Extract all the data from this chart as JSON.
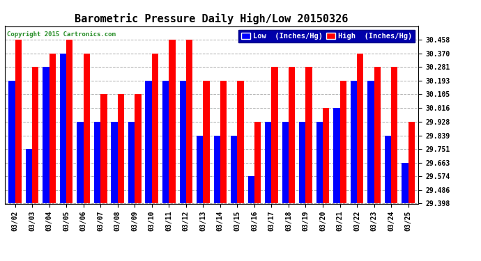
{
  "title": "Barometric Pressure Daily High/Low 20150326",
  "copyright": "Copyright 2015 Cartronics.com",
  "legend_low": "Low  (Inches/Hg)",
  "legend_high": "High  (Inches/Hg)",
  "dates": [
    "03/02",
    "03/03",
    "03/04",
    "03/05",
    "03/06",
    "03/07",
    "03/08",
    "03/09",
    "03/10",
    "03/11",
    "03/12",
    "03/13",
    "03/14",
    "03/15",
    "03/16",
    "03/17",
    "03/18",
    "03/19",
    "03/20",
    "03/21",
    "03/22",
    "03/23",
    "03/24",
    "03/25"
  ],
  "low": [
    30.193,
    29.751,
    30.281,
    30.37,
    29.928,
    29.928,
    29.928,
    29.928,
    30.193,
    30.193,
    30.193,
    29.839,
    29.839,
    29.839,
    29.574,
    29.928,
    29.928,
    29.928,
    29.928,
    30.016,
    30.193,
    30.193,
    29.839,
    29.663
  ],
  "high": [
    30.458,
    30.281,
    30.37,
    30.458,
    30.37,
    30.105,
    30.105,
    30.105,
    30.37,
    30.458,
    30.458,
    30.193,
    30.193,
    30.193,
    29.928,
    30.281,
    30.281,
    30.281,
    30.016,
    30.193,
    30.37,
    30.281,
    30.281,
    29.928
  ],
  "ylim_min": 29.398,
  "ylim_max": 30.546,
  "yticks": [
    30.458,
    30.37,
    30.281,
    30.193,
    30.105,
    30.016,
    29.928,
    29.839,
    29.751,
    29.663,
    29.574,
    29.486,
    29.398
  ],
  "bar_width": 0.38,
  "low_color": "#0000ff",
  "high_color": "#ff0000",
  "bg_color": "#ffffff",
  "grid_color": "#aaaaaa",
  "title_fontsize": 11,
  "tick_fontsize": 7,
  "legend_fontsize": 7.5
}
